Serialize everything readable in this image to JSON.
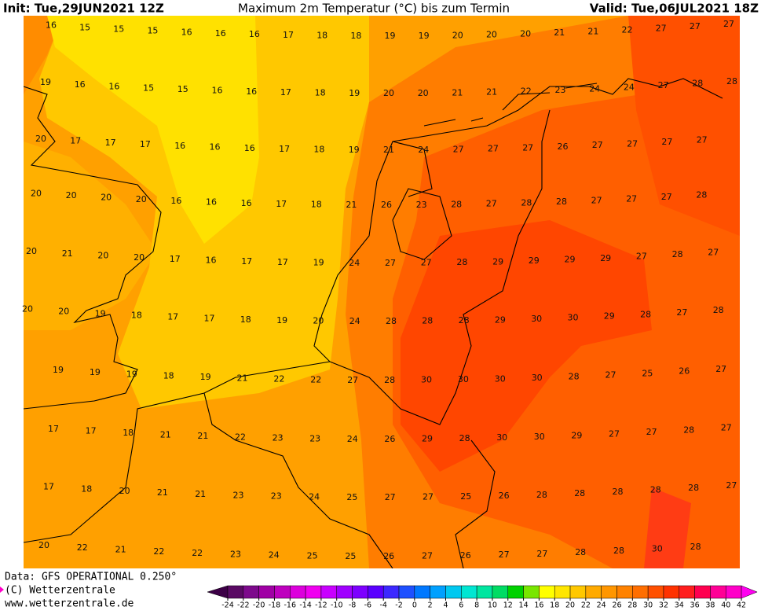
{
  "header": {
    "init": "Init: Tue,29JUN2021 12Z",
    "title": "Maximum 2m Temperatur (°C) bis zum Termin",
    "valid": "Valid: Tue,06JUL2021 18Z"
  },
  "temperature_grid": [
    [
      16,
      15,
      15,
      15,
      16,
      16,
      16,
      17,
      18,
      18,
      19,
      19,
      20,
      20,
      20,
      21,
      21,
      22,
      27,
      27,
      27
    ],
    [
      19,
      16,
      16,
      15,
      15,
      16,
      16,
      17,
      18,
      19,
      20,
      20,
      21,
      21,
      22,
      23,
      24,
      24,
      27,
      28,
      28
    ],
    [
      20,
      17,
      17,
      17,
      16,
      16,
      16,
      17,
      18,
      19,
      21,
      24,
      27,
      27,
      27,
      26,
      27,
      27,
      27,
      27
    ],
    [
      20,
      20,
      20,
      20,
      16,
      16,
      16,
      17,
      18,
      21,
      26,
      23,
      28,
      27,
      28,
      28,
      27,
      27,
      27,
      28
    ],
    [
      20,
      21,
      20,
      20,
      17,
      16,
      17,
      17,
      19,
      24,
      27,
      27,
      28,
      29,
      29,
      29,
      29,
      27,
      28,
      27
    ],
    [
      20,
      20,
      19,
      18,
      17,
      17,
      18,
      19,
      20,
      24,
      28,
      28,
      28,
      29,
      30,
      30,
      29,
      28,
      27,
      28
    ],
    [
      19,
      19,
      19,
      18,
      19,
      21,
      22,
      22,
      27,
      28,
      30,
      30,
      30,
      30,
      28,
      27,
      25,
      26,
      27
    ],
    [
      17,
      17,
      18,
      21,
      21,
      22,
      23,
      23,
      24,
      26,
      29,
      28,
      30,
      30,
      29,
      27,
      27,
      28,
      27
    ],
    [
      17,
      18,
      20,
      21,
      21,
      23,
      23,
      24,
      25,
      27,
      27,
      25,
      26,
      28,
      28,
      28,
      28,
      28,
      27
    ],
    [
      20,
      22,
      21,
      22,
      22,
      23,
      24,
      25,
      25,
      26,
      27,
      26,
      27,
      27,
      28,
      28,
      30,
      28
    ]
  ],
  "footer": {
    "data": "Data: GFS OPERATIONAL 0.250°",
    "copyright": "(C) Wetterzentrale",
    "url": "www.wetterzentrale.de"
  },
  "colorbar": {
    "ticks": [
      -24,
      -22,
      -20,
      -18,
      -16,
      -14,
      -12,
      -10,
      -8,
      -6,
      -4,
      -2,
      0,
      2,
      4,
      6,
      8,
      10,
      12,
      14,
      16,
      18,
      20,
      22,
      24,
      26,
      28,
      30,
      32,
      34,
      36,
      38,
      40,
      42
    ],
    "colors": [
      "#3c0046",
      "#5a0a64",
      "#7d0a8c",
      "#a000a5",
      "#be00be",
      "#dc00dc",
      "#f000f0",
      "#c800ff",
      "#a000ff",
      "#7d00ff",
      "#5a00ff",
      "#3c28ff",
      "#1e50ff",
      "#0078ff",
      "#00a0ff",
      "#00c8f0",
      "#00e6d2",
      "#00e6a0",
      "#00dc64",
      "#00d200",
      "#78e600",
      "#ffff00",
      "#ffe600",
      "#ffc800",
      "#ffaa00",
      "#ff9600",
      "#ff8200",
      "#ff6e00",
      "#ff5000",
      "#ff3200",
      "#ff1e1e",
      "#ff0050",
      "#ff0096",
      "#ff00c8",
      "#ff00f0"
    ]
  }
}
